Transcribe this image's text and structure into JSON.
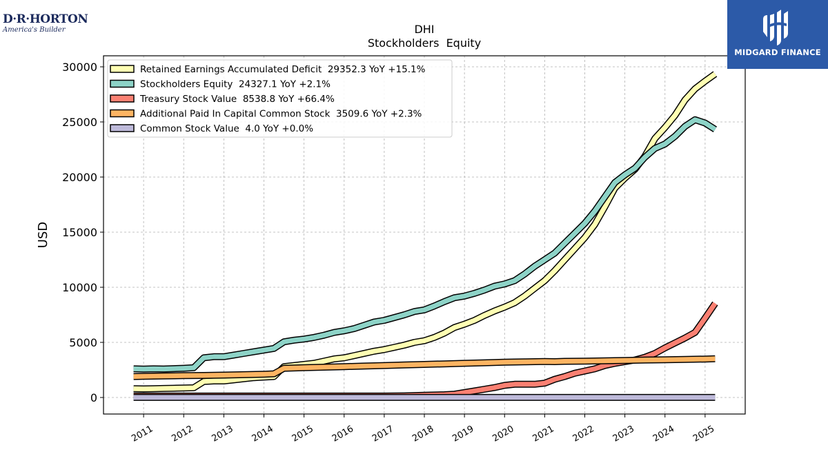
{
  "branding": {
    "company_logo": "D·R·HORTON",
    "company_tagline": "America's Builder",
    "publisher_logo": "MIDGARD FINANCE"
  },
  "chart_data": {
    "type": "line",
    "title": "DHI",
    "subtitle": "Stockholders  Equity",
    "ylabel": "USD",
    "xlabel": "",
    "ylim": [
      -1500,
      31000
    ],
    "xlim": [
      2010.0,
      2026.0
    ],
    "yticks": [
      0,
      5000,
      10000,
      15000,
      20000,
      25000,
      30000
    ],
    "xticks": [
      "2011",
      "2012",
      "2013",
      "2014",
      "2015",
      "2016",
      "2017",
      "2018",
      "2019",
      "2020",
      "2021",
      "2022",
      "2023",
      "2024",
      "2025"
    ],
    "grid": true,
    "legend_position": "top-left",
    "series": [
      {
        "name": "Retained Earnings Accumulated Deficit  29352.3 YoY +15.1%",
        "color": "#ffffb3",
        "x": [
          2010.75,
          2011.0,
          2011.25,
          2011.5,
          2011.75,
          2012.0,
          2012.25,
          2012.5,
          2012.75,
          2013.0,
          2013.25,
          2013.5,
          2013.75,
          2014.0,
          2014.25,
          2014.5,
          2014.75,
          2015.0,
          2015.25,
          2015.5,
          2015.75,
          2016.0,
          2016.25,
          2016.5,
          2016.75,
          2017.0,
          2017.25,
          2017.5,
          2017.75,
          2018.0,
          2018.25,
          2018.5,
          2018.75,
          2019.0,
          2019.25,
          2019.5,
          2019.75,
          2020.0,
          2020.25,
          2020.5,
          2020.75,
          2021.0,
          2021.25,
          2021.5,
          2021.75,
          2022.0,
          2022.25,
          2022.5,
          2022.75,
          2023.0,
          2023.25,
          2023.5,
          2023.75,
          2024.0,
          2024.25,
          2024.5,
          2024.75,
          2025.0,
          2025.25
        ],
        "y": [
          800,
          780,
          800,
          820,
          840,
          860,
          880,
          1450,
          1500,
          1500,
          1600,
          1700,
          1800,
          1850,
          1900,
          2800,
          2900,
          3000,
          3100,
          3300,
          3500,
          3600,
          3800,
          4000,
          4200,
          4350,
          4550,
          4750,
          5000,
          5150,
          5450,
          5850,
          6350,
          6650,
          7000,
          7450,
          7850,
          8200,
          8600,
          9200,
          9900,
          10600,
          11500,
          12500,
          13500,
          14500,
          15700,
          17300,
          19000,
          19900,
          20700,
          21900,
          23500,
          24500,
          25600,
          27000,
          28000,
          28700,
          29352
        ]
      },
      {
        "name": "Stockholders Equity  24327.1 YoY +2.1%",
        "color": "#8dd3c7",
        "x": [
          2010.75,
          2011.0,
          2011.25,
          2011.5,
          2011.75,
          2012.0,
          2012.25,
          2012.5,
          2012.75,
          2013.0,
          2013.25,
          2013.5,
          2013.75,
          2014.0,
          2014.25,
          2014.5,
          2014.75,
          2015.0,
          2015.25,
          2015.5,
          2015.75,
          2016.0,
          2016.25,
          2016.5,
          2016.75,
          2017.0,
          2017.25,
          2017.5,
          2017.75,
          2018.0,
          2018.25,
          2018.5,
          2018.75,
          2019.0,
          2019.25,
          2019.5,
          2019.75,
          2020.0,
          2020.25,
          2020.5,
          2020.75,
          2021.0,
          2021.25,
          2021.5,
          2021.75,
          2022.0,
          2022.25,
          2022.5,
          2022.75,
          2023.0,
          2023.25,
          2023.5,
          2023.75,
          2024.0,
          2024.25,
          2024.5,
          2024.75,
          2025.0,
          2025.25
        ],
        "y": [
          2600,
          2580,
          2600,
          2590,
          2620,
          2650,
          2700,
          3600,
          3700,
          3700,
          3850,
          4000,
          4150,
          4300,
          4450,
          5050,
          5200,
          5300,
          5450,
          5650,
          5900,
          6050,
          6250,
          6550,
          6850,
          7000,
          7250,
          7500,
          7800,
          7950,
          8300,
          8700,
          9050,
          9200,
          9450,
          9750,
          10100,
          10300,
          10600,
          11200,
          11900,
          12500,
          13100,
          14000,
          14900,
          15800,
          16900,
          18200,
          19500,
          20200,
          20800,
          21800,
          22600,
          23000,
          23700,
          24600,
          25200,
          24900,
          24327
        ]
      },
      {
        "name": "Treasury Stock Value  8538.8 YoY +66.4%",
        "color": "#fb8072",
        "x": [
          2010.75,
          2011.0,
          2011.5,
          2012.0,
          2012.5,
          2013.0,
          2013.5,
          2014.0,
          2014.5,
          2015.0,
          2015.5,
          2016.0,
          2016.5,
          2017.0,
          2017.5,
          2018.0,
          2018.5,
          2018.75,
          2019.0,
          2019.25,
          2019.5,
          2019.75,
          2020.0,
          2020.25,
          2020.5,
          2020.75,
          2021.0,
          2021.25,
          2021.5,
          2021.75,
          2022.0,
          2022.25,
          2022.5,
          2022.75,
          2023.0,
          2023.25,
          2023.5,
          2023.75,
          2024.0,
          2024.25,
          2024.5,
          2024.75,
          2025.0,
          2025.25
        ],
        "y": [
          130,
          130,
          130,
          130,
          130,
          130,
          130,
          130,
          130,
          130,
          130,
          130,
          130,
          130,
          150,
          200,
          250,
          300,
          450,
          600,
          750,
          900,
          1100,
          1200,
          1200,
          1200,
          1300,
          1650,
          1900,
          2200,
          2400,
          2600,
          2900,
          3100,
          3250,
          3400,
          3650,
          4000,
          4500,
          4950,
          5400,
          5900,
          7200,
          8539
        ]
      },
      {
        "name": "Additional Paid In Capital Common Stock  3509.6 YoY +2.3%",
        "color": "#fdb462",
        "x": [
          2010.75,
          2011.0,
          2011.5,
          2012.0,
          2012.5,
          2013.0,
          2013.5,
          2014.0,
          2014.25,
          2014.5,
          2015.0,
          2015.5,
          2016.0,
          2016.5,
          2017.0,
          2017.5,
          2018.0,
          2018.5,
          2019.0,
          2019.5,
          2020.0,
          2020.5,
          2021.0,
          2021.25,
          2021.5,
          2022.0,
          2022.5,
          2023.0,
          2023.5,
          2024.0,
          2024.5,
          2025.0,
          2025.25
        ],
        "y": [
          1900,
          1920,
          1950,
          1980,
          2000,
          2030,
          2070,
          2110,
          2150,
          2650,
          2700,
          2750,
          2800,
          2850,
          2900,
          2950,
          3000,
          3050,
          3100,
          3150,
          3200,
          3230,
          3260,
          3250,
          3280,
          3300,
          3330,
          3360,
          3400,
          3420,
          3450,
          3490,
          3510
        ]
      },
      {
        "name": "Common Stock Value  4.0 YoY +0.0%",
        "color": "#bebada",
        "x": [
          2010.75,
          2025.25
        ],
        "y": [
          4,
          4
        ]
      }
    ]
  }
}
